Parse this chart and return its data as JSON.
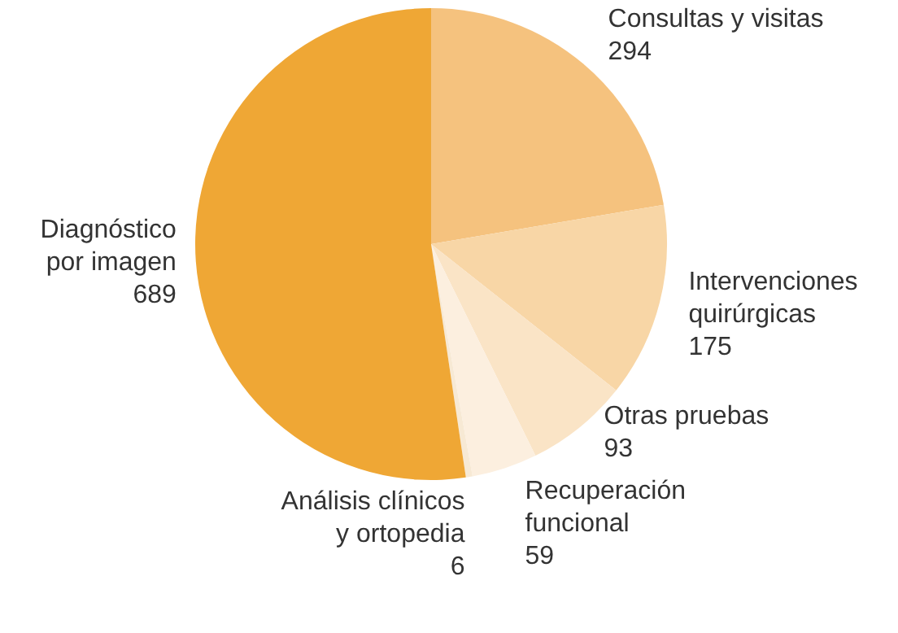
{
  "chart_data": {
    "type": "pie",
    "categories": [
      "Consultas y visitas",
      "Intervenciones quirúrgicas",
      "Otras pruebas",
      "Recuperación funcional",
      "Análisis clínicos y ortopedia",
      "Diagnóstico por imagen"
    ],
    "values": [
      294,
      175,
      93,
      59,
      6,
      689
    ],
    "colors": [
      "#f5c27e",
      "#f8d6a6",
      "#fae4c6",
      "#fcefdf",
      "#f7e9d4",
      "#efa735"
    ],
    "data_labels": true,
    "legend": false
  }
}
